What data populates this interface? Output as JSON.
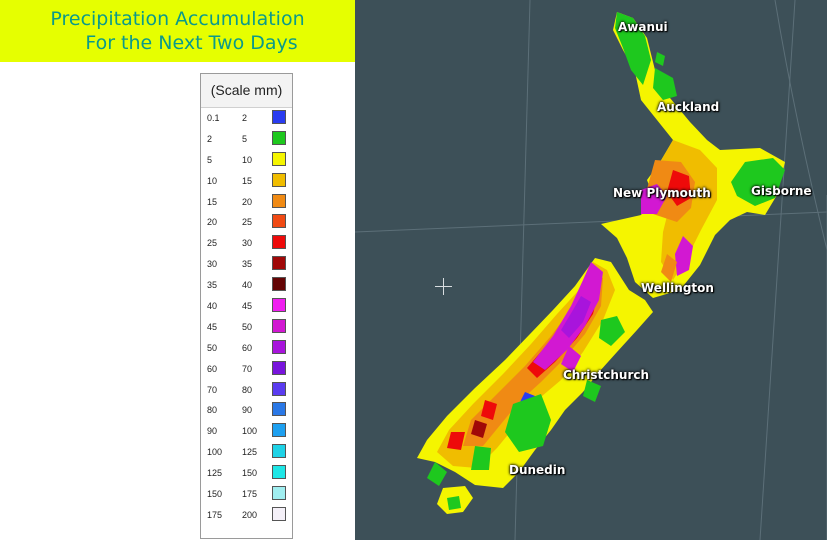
{
  "title": {
    "line1": "Precipitation Accumulation",
    "line2": "For the Next Two Days"
  },
  "legend": {
    "header": "(Scale mm)",
    "rows": [
      {
        "lo": "0.1",
        "hi": "2",
        "color": "#2a3cf0"
      },
      {
        "lo": "2",
        "hi": "5",
        "color": "#1ec81e"
      },
      {
        "lo": "5",
        "hi": "10",
        "color": "#f5f500"
      },
      {
        "lo": "10",
        "hi": "15",
        "color": "#f0bd00"
      },
      {
        "lo": "15",
        "hi": "20",
        "color": "#f08a14"
      },
      {
        "lo": "20",
        "hi": "25",
        "color": "#f04a14"
      },
      {
        "lo": "25",
        "hi": "30",
        "color": "#ee0a0a"
      },
      {
        "lo": "30",
        "hi": "35",
        "color": "#a00808"
      },
      {
        "lo": "35",
        "hi": "40",
        "color": "#640404"
      },
      {
        "lo": "40",
        "hi": "45",
        "color": "#f01ef0"
      },
      {
        "lo": "45",
        "hi": "50",
        "color": "#d218d2"
      },
      {
        "lo": "50",
        "hi": "60",
        "color": "#a814dc"
      },
      {
        "lo": "60",
        "hi": "70",
        "color": "#7814dc"
      },
      {
        "lo": "70",
        "hi": "80",
        "color": "#5a3cf0"
      },
      {
        "lo": "80",
        "hi": "90",
        "color": "#2a78e6"
      },
      {
        "lo": "90",
        "hi": "100",
        "color": "#1ea0f0"
      },
      {
        "lo": "100",
        "hi": "125",
        "color": "#1ed2e6"
      },
      {
        "lo": "125",
        "hi": "150",
        "color": "#1ee6e6"
      },
      {
        "lo": "150",
        "hi": "175",
        "color": "#a0eef0"
      },
      {
        "lo": "175",
        "hi": "200",
        "color": "#f4f0f8"
      }
    ]
  },
  "map": {
    "background": "#3d5058",
    "cities": {
      "awanui": "Awanui",
      "auckland": "Auckland",
      "new_plymouth": "New Plymouth",
      "gisborne": "Gisborne",
      "wellington": "Wellington",
      "christchurch": "Christchurch",
      "dunedin": "Dunedin"
    }
  }
}
